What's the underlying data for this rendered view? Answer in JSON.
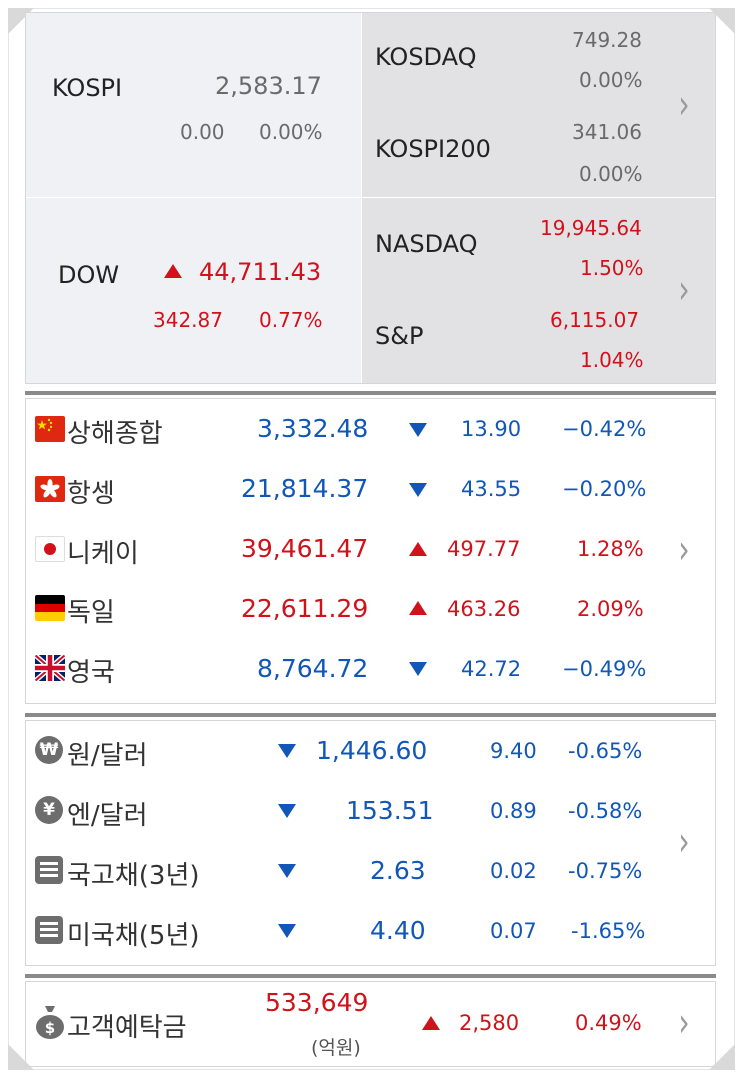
{
  "top": {
    "kospi": {
      "name": "KOSPI",
      "value": "2,583.17",
      "change": "0.00",
      "pct": "0.00%"
    },
    "kosdaq": {
      "name": "KOSDAQ",
      "value": "749.28",
      "pct": "0.00%"
    },
    "kospi200": {
      "name": "KOSPI200",
      "value": "341.06",
      "pct": "0.00%"
    },
    "dow": {
      "name": "DOW",
      "value": "44,711.43",
      "change": "342.87",
      "pct": "0.77%",
      "direction": "up"
    },
    "nasdaq": {
      "name": "NASDAQ",
      "value": "19,945.64",
      "pct": "1.50%"
    },
    "sp": {
      "name": "S&P",
      "value": "6,115.07",
      "pct": "1.04%"
    }
  },
  "world": [
    {
      "flag": "china-flag-icon",
      "name": "상해종합",
      "value": "3,332.48",
      "direction": "down",
      "change": "13.90",
      "pct": "−0.42%"
    },
    {
      "flag": "hongkong-flag-icon",
      "name": "항셍",
      "value": "21,814.37",
      "direction": "down",
      "change": "43.55",
      "pct": "−0.20%"
    },
    {
      "flag": "japan-flag-icon",
      "name": "니케이",
      "value": "39,461.47",
      "direction": "up",
      "change": "497.77",
      "pct": "1.28%"
    },
    {
      "flag": "germany-flag-icon",
      "name": "독일",
      "value": "22,611.29",
      "direction": "up",
      "change": "463.26",
      "pct": "2.09%"
    },
    {
      "flag": "uk-flag-icon",
      "name": "영국",
      "value": "8,764.72",
      "direction": "down",
      "change": "42.72",
      "pct": "−0.49%"
    }
  ],
  "fx": [
    {
      "icon": "won-icon",
      "glyph": "₩",
      "name": "원/달러",
      "value": "1,446.60",
      "direction": "down",
      "change": "9.40",
      "pct": "-0.65%"
    },
    {
      "icon": "yen-icon",
      "glyph": "¥",
      "name": "엔/달러",
      "value": "153.51",
      "direction": "down",
      "change": "0.89",
      "pct": "-0.58%"
    },
    {
      "icon": "bond-list-icon",
      "glyph": "",
      "name": "국고채(3년)",
      "value": "2.63",
      "direction": "down",
      "change": "0.02",
      "pct": "-0.75%"
    },
    {
      "icon": "bond-list-icon",
      "glyph": "",
      "name": "미국채(5년)",
      "value": "4.40",
      "direction": "down",
      "change": "0.07",
      "pct": "-1.65%"
    }
  ],
  "deposit": {
    "icon": "money-bag-icon",
    "name": "고객예탁금",
    "value": "533,649",
    "unit": "(억원)",
    "direction": "up",
    "change": "2,580",
    "pct": "0.49%"
  },
  "colors": {
    "up": "#d0121b",
    "down": "#1257b8",
    "flat": "#6a6a6a"
  }
}
